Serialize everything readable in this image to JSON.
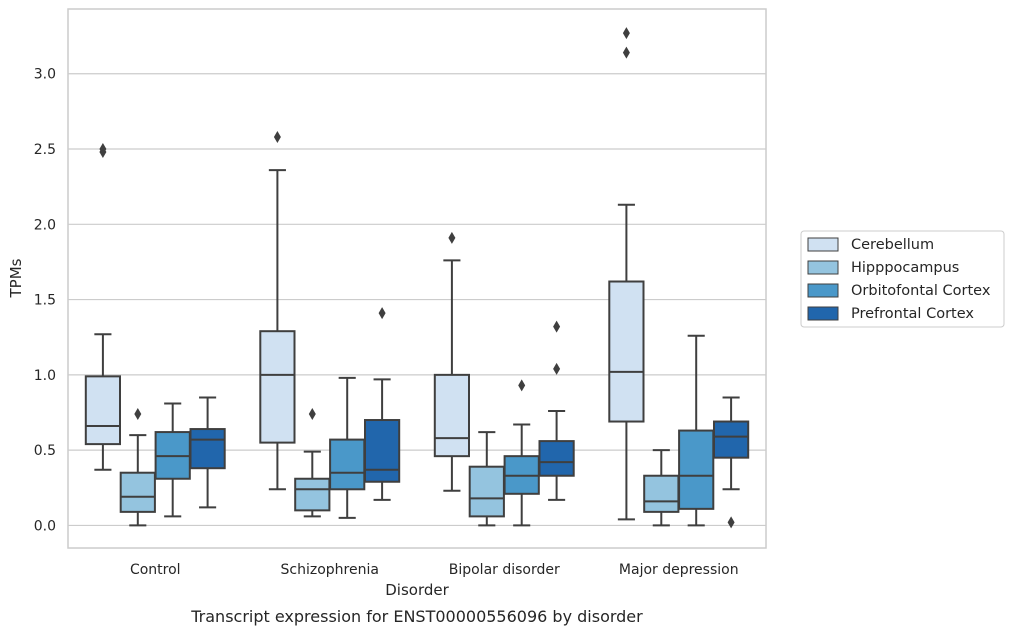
{
  "caption": "Transcript expression for ENST00000556096 by disorder",
  "chart_data": {
    "type": "boxplot",
    "title": "",
    "xlabel": "Disorder",
    "ylabel": "TPMs",
    "ylim": [
      -0.15,
      3.43
    ],
    "yticks": [
      0.0,
      0.5,
      1.0,
      1.5,
      2.0,
      2.5,
      3.0
    ],
    "ytick_labels": [
      "0.0",
      "0.5",
      "1.0",
      "1.5",
      "2.0",
      "2.5",
      "3.0"
    ],
    "grid": "horizontal",
    "legend_position": "right",
    "categories": [
      "Control",
      "Schizophrenia",
      "Bipolar disorder",
      "Major depression"
    ],
    "series": [
      {
        "name": "Cerebellum",
        "color": "#d0e1f2",
        "boxes": [
          {
            "whislo": 0.37,
            "q1": 0.54,
            "med": 0.66,
            "q3": 0.99,
            "whishi": 1.27,
            "fliers": [
              2.48,
              2.5
            ]
          },
          {
            "whislo": 0.24,
            "q1": 0.55,
            "med": 1.0,
            "q3": 1.29,
            "whishi": 2.36,
            "fliers": [
              2.58
            ]
          },
          {
            "whislo": 0.23,
            "q1": 0.46,
            "med": 0.58,
            "q3": 1.0,
            "whishi": 1.76,
            "fliers": [
              1.91
            ]
          },
          {
            "whislo": 0.04,
            "q1": 0.69,
            "med": 1.02,
            "q3": 1.62,
            "whishi": 2.13,
            "fliers": [
              3.14,
              3.27
            ]
          }
        ]
      },
      {
        "name": "Hipppocampus",
        "color": "#94c4df",
        "boxes": [
          {
            "whislo": 0.0,
            "q1": 0.09,
            "med": 0.19,
            "q3": 0.35,
            "whishi": 0.6,
            "fliers": [
              0.74
            ]
          },
          {
            "whislo": 0.06,
            "q1": 0.1,
            "med": 0.24,
            "q3": 0.31,
            "whishi": 0.49,
            "fliers": [
              0.74
            ]
          },
          {
            "whislo": 0.0,
            "q1": 0.06,
            "med": 0.18,
            "q3": 0.39,
            "whishi": 0.62,
            "fliers": []
          },
          {
            "whislo": 0.0,
            "q1": 0.09,
            "med": 0.16,
            "q3": 0.33,
            "whishi": 0.5,
            "fliers": []
          }
        ]
      },
      {
        "name": "Orbitofontal Cortex",
        "color": "#4a98c9",
        "boxes": [
          {
            "whislo": 0.06,
            "q1": 0.31,
            "med": 0.46,
            "q3": 0.62,
            "whishi": 0.81,
            "fliers": []
          },
          {
            "whislo": 0.05,
            "q1": 0.24,
            "med": 0.35,
            "q3": 0.57,
            "whishi": 0.98,
            "fliers": []
          },
          {
            "whislo": 0.0,
            "q1": 0.21,
            "med": 0.33,
            "q3": 0.46,
            "whishi": 0.67,
            "fliers": [
              0.93
            ]
          },
          {
            "whislo": 0.0,
            "q1": 0.11,
            "med": 0.33,
            "q3": 0.63,
            "whishi": 1.26,
            "fliers": []
          }
        ]
      },
      {
        "name": "Prefrontal Cortex",
        "color": "#2166ac",
        "boxes": [
          {
            "whislo": 0.12,
            "q1": 0.38,
            "med": 0.57,
            "q3": 0.64,
            "whishi": 0.85,
            "fliers": []
          },
          {
            "whislo": 0.17,
            "q1": 0.29,
            "med": 0.37,
            "q3": 0.7,
            "whishi": 0.97,
            "fliers": [
              1.41
            ]
          },
          {
            "whislo": 0.17,
            "q1": 0.33,
            "med": 0.42,
            "q3": 0.56,
            "whishi": 0.76,
            "fliers": [
              1.04,
              1.32
            ]
          },
          {
            "whislo": 0.24,
            "q1": 0.45,
            "med": 0.59,
            "q3": 0.69,
            "whishi": 0.85,
            "fliers": [
              0.02
            ]
          }
        ]
      }
    ]
  }
}
